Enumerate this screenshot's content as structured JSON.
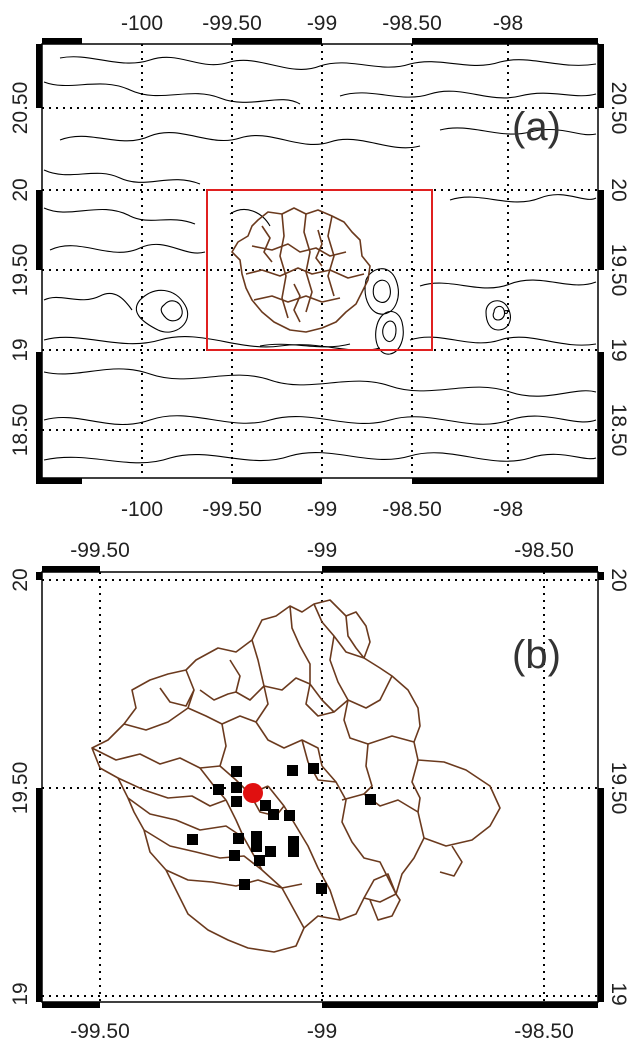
{
  "panel_a": {
    "label": "(a)",
    "lon_ticks": [
      "-100",
      "-99.50",
      "-99",
      "-98.50",
      "-98"
    ],
    "lat_ticks": [
      "20.50",
      "20",
      "19.50",
      "19",
      "18.50"
    ],
    "box_color": "#e02020"
  },
  "panel_b": {
    "label": "(b)",
    "lon_ticks": [
      "-99.50",
      "-99",
      "-98.50"
    ],
    "lat_ticks": [
      "20",
      "19.50",
      "19"
    ],
    "station_color": "#000000",
    "site_color": "#e01010",
    "boundary_color": "#6b3a1e"
  }
}
